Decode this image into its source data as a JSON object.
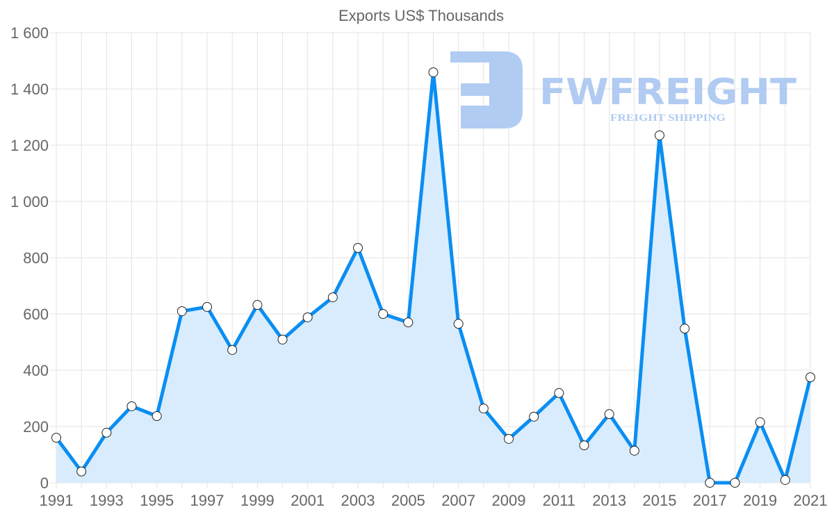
{
  "chart_data": {
    "type": "line",
    "title": "Exports US$ Thousands",
    "xlabel": "",
    "ylabel": "",
    "x": [
      1991,
      1992,
      1993,
      1994,
      1995,
      1996,
      1997,
      1998,
      1999,
      2000,
      2001,
      2002,
      2003,
      2004,
      2005,
      2006,
      2007,
      2008,
      2009,
      2010,
      2011,
      2012,
      2013,
      2014,
      2015,
      2016,
      2017,
      2018,
      2019,
      2020,
      2021
    ],
    "series": [
      {
        "name": "Exports US$ Thousands",
        "values": [
          160,
          40,
          178,
          272,
          237,
          610,
          625,
          472,
          632,
          509,
          588,
          659,
          835,
          600,
          570,
          1459,
          565,
          264,
          156,
          235,
          319,
          133,
          244,
          114,
          1235,
          548,
          0,
          0,
          215,
          10,
          375
        ]
      }
    ],
    "xticks": [
      "1991",
      "1993",
      "1995",
      "1997",
      "1999",
      "2001",
      "2003",
      "2005",
      "2007",
      "2009",
      "2011",
      "2013",
      "2015",
      "2017",
      "2019",
      "2021"
    ],
    "yticks": [
      "0",
      "200",
      "400",
      "600",
      "800",
      "1 000",
      "1 200",
      "1 400",
      "1 600"
    ],
    "ylim": [
      0,
      1600
    ],
    "xlim": [
      1991,
      2021
    ],
    "grid": true,
    "fill": true,
    "colors": {
      "line": "#0a8ef2",
      "fill": "#d9ecfd",
      "grid": "#e3e3e3",
      "watermark": "#adc9f2"
    }
  },
  "watermark": {
    "brand": "FWFREIGHT",
    "tagline": "FREIGHT SHIPPING"
  }
}
